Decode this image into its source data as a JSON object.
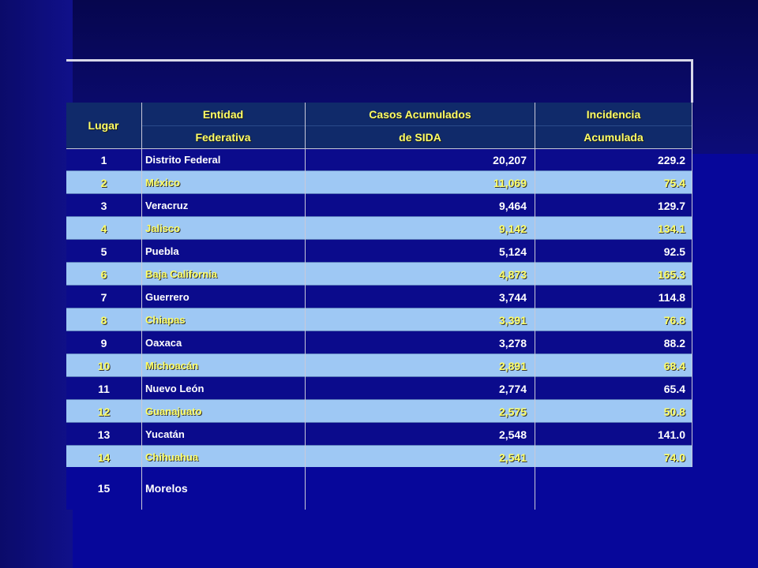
{
  "table": {
    "headers": {
      "lugar": "Lugar",
      "entidad_top": "Entidad",
      "entidad_bottom": "Federativa",
      "casos_top": "Casos Acumulados",
      "casos_bottom": "de SIDA",
      "incidencia_top": "Incidencia",
      "incidencia_bottom": "Acumulada"
    },
    "rows": [
      {
        "lugar": "1",
        "entidad": "Distrito Federal",
        "casos": "20,207",
        "incidencia": "229.2"
      },
      {
        "lugar": "2",
        "entidad": "México",
        "casos": "11,069",
        "incidencia": "75.4"
      },
      {
        "lugar": "3",
        "entidad": "Veracruz",
        "casos": "9,464",
        "incidencia": "129.7"
      },
      {
        "lugar": "4",
        "entidad": "Jalisco",
        "casos": "9,142",
        "incidencia": "134.1"
      },
      {
        "lugar": "5",
        "entidad": "Puebla",
        "casos": "5,124",
        "incidencia": "92.5"
      },
      {
        "lugar": "6",
        "entidad": "Baja California",
        "casos": "4,873",
        "incidencia": "165.3"
      },
      {
        "lugar": "7",
        "entidad": "Guerrero",
        "casos": "3,744",
        "incidencia": "114.8"
      },
      {
        "lugar": "8",
        "entidad": "Chiapas",
        "casos": "3,391",
        "incidencia": "76.8"
      },
      {
        "lugar": "9",
        "entidad": "Oaxaca",
        "casos": "3,278",
        "incidencia": "88.2"
      },
      {
        "lugar": "10",
        "entidad": "Michoacán",
        "casos": "2,891",
        "incidencia": "68.4"
      },
      {
        "lugar": "11",
        "entidad": "Nuevo León",
        "casos": "2,774",
        "incidencia": "65.4"
      },
      {
        "lugar": "12",
        "entidad": "Guanajuato",
        "casos": "2,575",
        "incidencia": "50.8"
      },
      {
        "lugar": "13",
        "entidad": "Yucatán",
        "casos": "2,548",
        "incidencia": "141.0"
      },
      {
        "lugar": "14",
        "entidad": "Chihuahua",
        "casos": "2,541",
        "incidencia": "74.0"
      },
      {
        "lugar": "15",
        "entidad": "Morelos",
        "casos": "",
        "incidencia": ""
      }
    ]
  },
  "colors": {
    "header_text": "#ffff66",
    "light_row": "#9ec8f4",
    "dark_row": "#0b0b8c",
    "background": "#07079a"
  }
}
